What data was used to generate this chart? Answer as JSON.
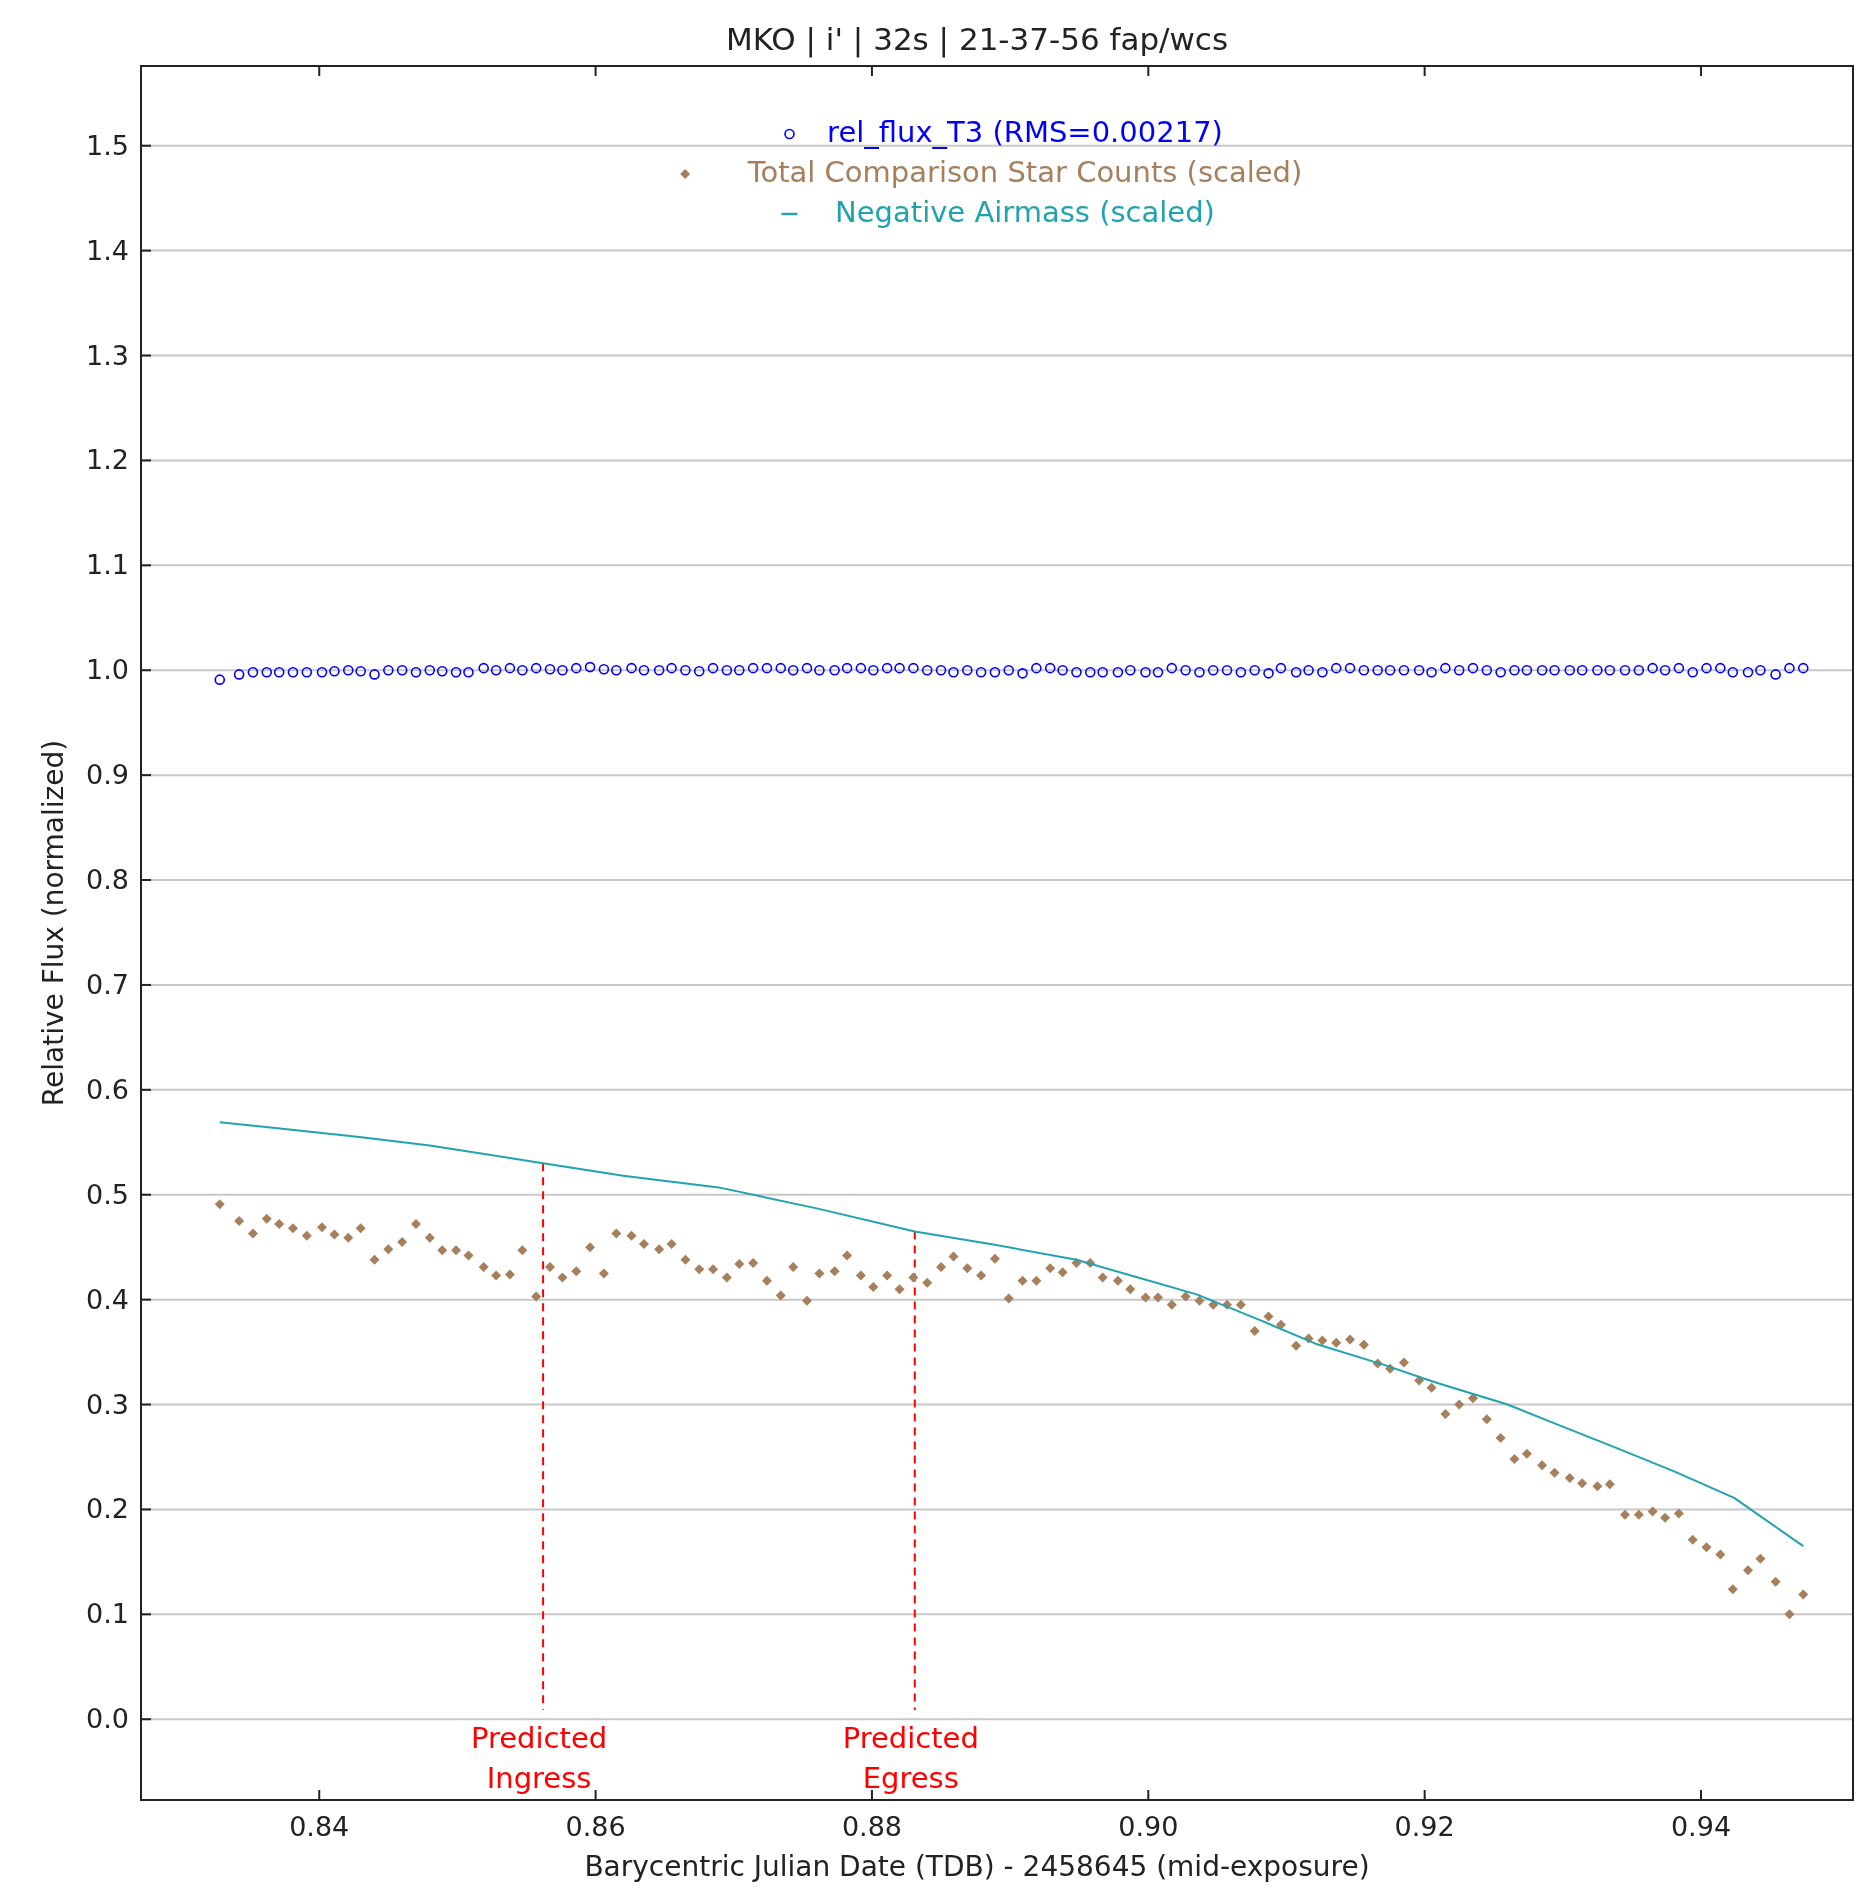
{
  "chart_data": {
    "type": "scatter",
    "title": "MKO | i' | 32s | 21-37-56 fap/wcs",
    "xlabel": "Barycentric Julian Date (TDB) - 2458645 (mid-exposure)",
    "ylabel": "Relative Flux (normalized)",
    "x": [
      0.8328,
      0.8342,
      0.8352,
      0.8362,
      0.8371,
      0.8381,
      0.8391,
      0.8402,
      0.8411,
      0.8421,
      0.843,
      0.844,
      0.845,
      0.846,
      0.847,
      0.848,
      0.8489,
      0.8499,
      0.8508,
      0.8519,
      0.8528,
      0.8538,
      0.8547,
      0.8557,
      0.8567,
      0.8576,
      0.8586,
      0.8596,
      0.8606,
      0.8615,
      0.8626,
      0.8635,
      0.8646,
      0.8655,
      0.8665,
      0.8675,
      0.8685,
      0.8695,
      0.8704,
      0.8714,
      0.8724,
      0.8734,
      0.8743,
      0.8753,
      0.8762,
      0.8773,
      0.8782,
      0.8792,
      0.8801,
      0.8811,
      0.882,
      0.883,
      0.884,
      0.885,
      0.8859,
      0.8869,
      0.8879,
      0.8889,
      0.8899,
      0.8909,
      0.8919,
      0.8929,
      0.8938,
      0.8948,
      0.8958,
      0.8967,
      0.8978,
      0.8987,
      0.8998,
      0.9007,
      0.9017,
      0.9027,
      0.9037,
      0.9047,
      0.9057,
      0.9067,
      0.9077,
      0.9087,
      0.9096,
      0.9107,
      0.9116,
      0.9126,
      0.9136,
      0.9146,
      0.9156,
      0.9166,
      0.9175,
      0.9185,
      0.9196,
      0.9205,
      0.9215,
      0.9225,
      0.9235,
      0.9245,
      0.9255,
      0.9265,
      0.9274,
      0.9285,
      0.9294,
      0.9305,
      0.9314,
      0.9325,
      0.9334,
      0.9345,
      0.9355,
      0.9365,
      0.9374,
      0.9384,
      0.9394,
      0.9404,
      0.9414,
      0.9423,
      0.9434,
      0.9443,
      0.9454,
      0.9464,
      0.9474
    ],
    "series": [
      {
        "name": "rel_flux_T3 (RMS=0.00217)",
        "marker": "circle",
        "color": "#0000ff",
        "values": [
          0.991,
          0.996,
          0.998,
          0.998,
          0.998,
          0.998,
          0.998,
          0.998,
          0.999,
          1.0,
          0.999,
          0.996,
          1.0,
          1.0,
          0.998,
          1.0,
          0.999,
          0.998,
          0.998,
          1.002,
          1.0,
          1.002,
          1.0,
          1.002,
          1.001,
          1.0,
          1.002,
          1.003,
          1.001,
          1.0,
          1.002,
          1.0,
          1.0,
          1.002,
          1.0,
          0.999,
          1.002,
          1.0,
          1.0,
          1.002,
          1.002,
          1.002,
          1.0,
          1.002,
          1.0,
          1.0,
          1.002,
          1.002,
          1.0,
          1.002,
          1.002,
          1.002,
          1.0,
          1.0,
          0.998,
          1.0,
          0.998,
          0.998,
          1.0,
          0.997,
          1.002,
          1.002,
          1.0,
          0.998,
          0.998,
          0.998,
          0.998,
          1.0,
          0.998,
          0.998,
          1.002,
          1.0,
          0.998,
          1.0,
          1.0,
          0.998,
          1.0,
          0.997,
          1.002,
          0.998,
          1.0,
          0.998,
          1.002,
          1.002,
          1.0,
          1.0,
          1.0,
          1.0,
          1.0,
          0.998,
          1.002,
          1.0,
          1.002,
          1.0,
          0.998,
          1.0,
          1.0,
          1.0,
          1.0,
          1.0,
          1.0,
          1.0,
          1.0,
          1.0,
          1.0,
          1.002,
          1.0,
          1.002,
          0.998,
          1.002,
          1.002,
          0.998,
          0.998,
          1.0,
          0.996,
          1.002,
          1.002
        ]
      },
      {
        "name": "Total Comparison Star Counts (scaled)",
        "marker": "diamond",
        "color": "#a67f5b",
        "values": [
          0.491,
          0.475,
          0.463,
          0.477,
          0.472,
          0.468,
          0.461,
          0.469,
          0.462,
          0.459,
          0.468,
          0.438,
          0.448,
          0.455,
          0.472,
          0.459,
          0.447,
          0.447,
          0.442,
          0.431,
          0.423,
          0.424,
          0.447,
          0.403,
          0.431,
          0.421,
          0.427,
          0.45,
          0.425,
          0.463,
          0.461,
          0.453,
          0.448,
          0.453,
          0.438,
          0.429,
          0.429,
          0.421,
          0.434,
          0.435,
          0.418,
          0.404,
          0.431,
          0.399,
          0.425,
          0.427,
          0.442,
          0.423,
          0.412,
          0.423,
          0.41,
          0.421,
          0.416,
          0.431,
          0.441,
          0.43,
          0.423,
          0.439,
          0.401,
          0.418,
          0.418,
          0.43,
          0.426,
          0.435,
          0.435,
          0.421,
          0.418,
          0.41,
          0.402,
          0.402,
          0.395,
          0.403,
          0.399,
          0.395,
          0.395,
          0.395,
          0.37,
          0.384,
          0.376,
          0.356,
          0.363,
          0.361,
          0.359,
          0.362,
          0.357,
          0.339,
          0.334,
          0.34,
          0.323,
          0.316,
          0.291,
          0.3,
          0.306,
          0.286,
          0.268,
          0.248,
          0.253,
          0.242,
          0.235,
          0.23,
          0.225,
          0.222,
          0.224,
          0.195,
          0.195,
          0.198,
          0.192,
          0.196,
          0.171,
          0.164,
          0.157,
          0.124,
          0.142,
          0.153,
          0.131,
          0.1,
          0.119
        ]
      },
      {
        "name": "Negative Airmass (scaled)",
        "type": "line",
        "marker": "none",
        "color": "#20a3ae",
        "x": [
          0.8328,
          0.838,
          0.8429,
          0.848,
          0.8562,
          0.862,
          0.8689,
          0.876,
          0.8831,
          0.889,
          0.8948,
          0.899,
          0.9035,
          0.908,
          0.9121,
          0.917,
          0.9208,
          0.926,
          0.9294,
          0.934,
          0.9381,
          0.9424,
          0.9474
        ],
        "values": [
          0.569,
          0.562,
          0.555,
          0.547,
          0.53,
          0.518,
          0.507,
          0.487,
          0.465,
          0.452,
          0.438,
          0.422,
          0.405,
          0.381,
          0.358,
          0.338,
          0.321,
          0.3,
          0.282,
          0.258,
          0.236,
          0.211,
          0.165
        ]
      }
    ],
    "xlim": [
      0.8271,
      0.951
    ],
    "ylim": [
      -0.077,
      1.576
    ],
    "xticks": [
      0.84,
      0.86,
      0.88,
      {
        "value": 0.9,
        "label": "0.90"
      },
      0.92,
      0.94
    ],
    "yticks": [
      {
        "value": 0,
        "label": "0.0"
      },
      0.1,
      0.2,
      0.3,
      0.4,
      0.5,
      0.6,
      0.7,
      0.8,
      0.9,
      {
        "value": 1,
        "label": "1.0"
      },
      1.1,
      1.2,
      1.3,
      1.4,
      1.5
    ],
    "grid": "y",
    "legend": "top",
    "ref_lines": [
      {
        "axis": "x",
        "value": 0.8562,
        "label": "Predicted Ingress",
        "color": "#ff0000",
        "line_style": "dashed"
      },
      {
        "axis": "x",
        "value": 0.8831,
        "label": "Predicted Egress",
        "color": "#ff0000",
        "line_style": "dashed"
      }
    ]
  }
}
